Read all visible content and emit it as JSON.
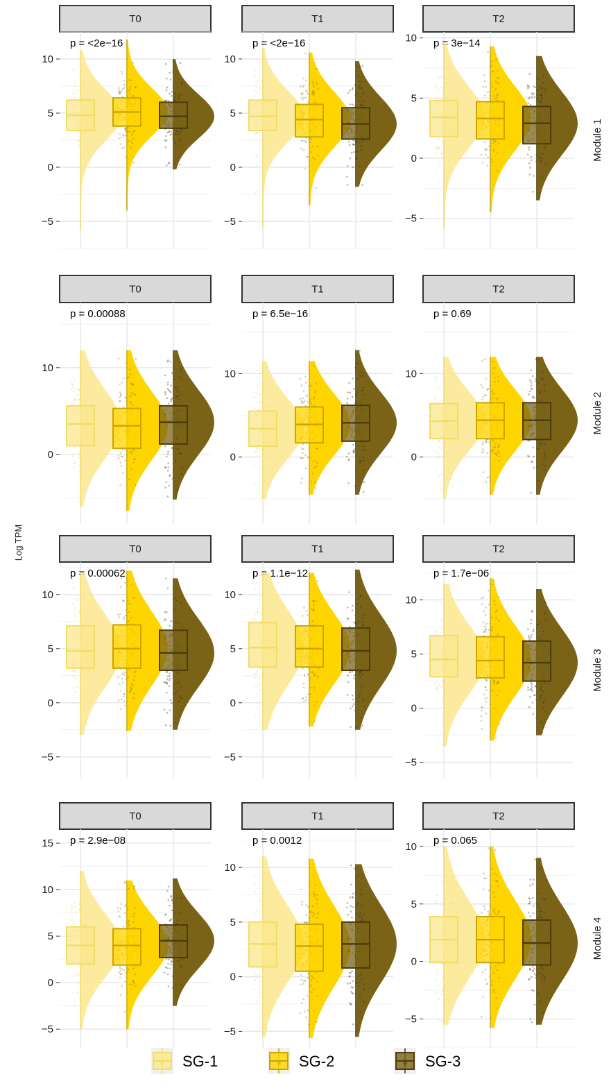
{
  "chart_data": {
    "type": "boxplot-raincloud",
    "ylabel": "Log TPM",
    "facet_columns": [
      "T0",
      "T1",
      "T2"
    ],
    "facet_rows": [
      "Module 1",
      "Module 2",
      "Module 3",
      "Module 4"
    ],
    "groups": [
      "SG-1",
      "SG-2",
      "SG-3"
    ],
    "colors": {
      "SG-1": "#fbe88e",
      "SG-2": "#ffd500",
      "SG-3": "#7a6317"
    },
    "legend": {
      "position": "bottom",
      "labels": [
        "SG-1",
        "SG-2",
        "SG-3"
      ],
      "key_glyph": "a"
    },
    "panels": [
      {
        "module": "Module 1",
        "time": "T0",
        "p_label": "p = <2e−16",
        "ylim": [
          -7.5,
          12.5
        ],
        "yticks": [
          -5,
          0,
          5,
          10
        ],
        "boxes": [
          {
            "group": "SG-1",
            "q1": 3.4,
            "median": 4.8,
            "q3": 6.2,
            "min": -5.8,
            "max": 10.8
          },
          {
            "group": "SG-2",
            "q1": 3.8,
            "median": 5.1,
            "q3": 6.4,
            "min": -4.0,
            "max": 11.8
          },
          {
            "group": "SG-3",
            "q1": 3.6,
            "median": 4.7,
            "q3": 6.0,
            "min": -0.2,
            "max": 10.0
          }
        ]
      },
      {
        "module": "Module 1",
        "time": "T1",
        "p_label": "p = <2e−16",
        "ylim": [
          -7.5,
          12.5
        ],
        "yticks": [
          -5,
          0,
          5,
          10
        ],
        "boxes": [
          {
            "group": "SG-1",
            "q1": 3.4,
            "median": 4.7,
            "q3": 6.2,
            "min": -5.5,
            "max": 11.0
          },
          {
            "group": "SG-2",
            "q1": 2.8,
            "median": 4.4,
            "q3": 5.8,
            "min": -3.5,
            "max": 10.6
          },
          {
            "group": "SG-3",
            "q1": 2.6,
            "median": 4.0,
            "q3": 5.5,
            "min": -1.8,
            "max": 9.8
          }
        ]
      },
      {
        "module": "Module 1",
        "time": "T2",
        "p_label": "p = 3e−14",
        "ylim": [
          -7.5,
          10.5
        ],
        "yticks": [
          -5,
          0,
          5,
          10
        ],
        "boxes": [
          {
            "group": "SG-1",
            "q1": 1.8,
            "median": 3.4,
            "q3": 4.8,
            "min": -5.8,
            "max": 9.5
          },
          {
            "group": "SG-2",
            "q1": 1.6,
            "median": 3.3,
            "q3": 4.7,
            "min": -4.5,
            "max": 9.3
          },
          {
            "group": "SG-3",
            "q1": 1.2,
            "median": 2.9,
            "q3": 4.3,
            "min": -3.5,
            "max": 8.5
          }
        ]
      },
      {
        "module": "Module 2",
        "time": "T0",
        "p_label": "p = 0.00088",
        "ylim": [
          -8,
          17.5
        ],
        "yticks": [
          0,
          10
        ],
        "boxes": [
          {
            "group": "SG-1",
            "q1": 1.0,
            "median": 3.5,
            "q3": 5.6,
            "min": -6.0,
            "max": 12.0
          },
          {
            "group": "SG-2",
            "q1": 0.7,
            "median": 3.3,
            "q3": 5.3,
            "min": -6.5,
            "max": 12.0
          },
          {
            "group": "SG-3",
            "q1": 1.2,
            "median": 3.7,
            "q3": 5.6,
            "min": -5.2,
            "max": 12.0
          }
        ]
      },
      {
        "module": "Module 2",
        "time": "T1",
        "p_label": "p = 6.5e−16",
        "ylim": [
          -8,
          18.5
        ],
        "yticks": [
          0,
          10
        ],
        "boxes": [
          {
            "group": "SG-1",
            "q1": 1.3,
            "median": 3.4,
            "q3": 5.5,
            "min": -5.0,
            "max": 11.5
          },
          {
            "group": "SG-2",
            "q1": 1.7,
            "median": 3.9,
            "q3": 6.0,
            "min": -4.5,
            "max": 11.5
          },
          {
            "group": "SG-3",
            "q1": 1.9,
            "median": 4.1,
            "q3": 6.2,
            "min": -4.5,
            "max": 12.8
          }
        ]
      },
      {
        "module": "Module 2",
        "time": "T2",
        "p_label": "p = 0.69",
        "ylim": [
          -8,
          18.5
        ],
        "yticks": [
          0,
          10
        ],
        "boxes": [
          {
            "group": "SG-1",
            "q1": 2.2,
            "median": 4.3,
            "q3": 6.4,
            "min": -5.0,
            "max": 12.0
          },
          {
            "group": "SG-2",
            "q1": 2.2,
            "median": 4.4,
            "q3": 6.5,
            "min": -4.5,
            "max": 12.0
          },
          {
            "group": "SG-3",
            "q1": 2.1,
            "median": 4.4,
            "q3": 6.5,
            "min": -4.5,
            "max": 12.0
          }
        ]
      },
      {
        "module": "Module 3",
        "time": "T0",
        "p_label": "p = 0.00062",
        "ylim": [
          -7,
          13
        ],
        "yticks": [
          -5,
          0,
          5,
          10
        ],
        "boxes": [
          {
            "group": "SG-1",
            "q1": 3.2,
            "median": 4.8,
            "q3": 7.1,
            "min": -3.0,
            "max": 12.0
          },
          {
            "group": "SG-2",
            "q1": 3.2,
            "median": 5.0,
            "q3": 7.2,
            "min": -2.6,
            "max": 12.2
          },
          {
            "group": "SG-3",
            "q1": 3.0,
            "median": 4.6,
            "q3": 6.7,
            "min": -2.5,
            "max": 11.5
          }
        ]
      },
      {
        "module": "Module 3",
        "time": "T1",
        "p_label": "p = 1.1e−12",
        "ylim": [
          -7,
          13
        ],
        "yticks": [
          -5,
          0,
          5,
          10
        ],
        "boxes": [
          {
            "group": "SG-1",
            "q1": 3.3,
            "median": 5.1,
            "q3": 7.4,
            "min": -2.5,
            "max": 12.0
          },
          {
            "group": "SG-2",
            "q1": 3.3,
            "median": 5.0,
            "q3": 7.1,
            "min": -2.2,
            "max": 12.0
          },
          {
            "group": "SG-3",
            "q1": 3.0,
            "median": 4.8,
            "q3": 6.9,
            "min": -2.5,
            "max": 12.3
          }
        ]
      },
      {
        "module": "Module 3",
        "time": "T2",
        "p_label": "p = 1.7e−06",
        "ylim": [
          -6.5,
          13.5
        ],
        "yticks": [
          -5,
          0,
          5,
          10
        ],
        "boxes": [
          {
            "group": "SG-1",
            "q1": 2.9,
            "median": 4.5,
            "q3": 6.7,
            "min": -3.5,
            "max": 11.5
          },
          {
            "group": "SG-2",
            "q1": 2.8,
            "median": 4.4,
            "q3": 6.6,
            "min": -3.0,
            "max": 12.0
          },
          {
            "group": "SG-3",
            "q1": 2.5,
            "median": 4.2,
            "q3": 6.2,
            "min": -2.5,
            "max": 11.0
          }
        ]
      },
      {
        "module": "Module 4",
        "time": "T0",
        "p_label": "p = 2.9e−08",
        "ylim": [
          -7,
          16.5
        ],
        "yticks": [
          -5,
          0,
          5,
          10,
          15
        ],
        "boxes": [
          {
            "group": "SG-1",
            "q1": 2.0,
            "median": 4.0,
            "q3": 6.0,
            "min": -5.0,
            "max": 12.0
          },
          {
            "group": "SG-2",
            "q1": 1.9,
            "median": 4.0,
            "q3": 5.8,
            "min": -5.0,
            "max": 11.0
          },
          {
            "group": "SG-3",
            "q1": 2.7,
            "median": 4.5,
            "q3": 6.2,
            "min": -2.5,
            "max": 11.2
          }
        ]
      },
      {
        "module": "Module 4",
        "time": "T1",
        "p_label": "p = 0.0012",
        "ylim": [
          -6.5,
          13.5
        ],
        "yticks": [
          -5,
          0,
          5,
          10
        ],
        "boxes": [
          {
            "group": "SG-1",
            "q1": 0.9,
            "median": 3.0,
            "q3": 5.0,
            "min": -5.5,
            "max": 11.0
          },
          {
            "group": "SG-2",
            "q1": 0.5,
            "median": 2.8,
            "q3": 4.8,
            "min": -5.6,
            "max": 10.8
          },
          {
            "group": "SG-3",
            "q1": 0.8,
            "median": 3.0,
            "q3": 5.0,
            "min": -5.5,
            "max": 10.3
          }
        ]
      },
      {
        "module": "Module 4",
        "time": "T2",
        "p_label": "p = 0.065",
        "ylim": [
          -7.5,
          11.5
        ],
        "yticks": [
          -5,
          0,
          5,
          10
        ],
        "boxes": [
          {
            "group": "SG-1",
            "q1": -0.1,
            "median": 1.9,
            "q3": 3.9,
            "min": -5.5,
            "max": 10.0
          },
          {
            "group": "SG-2",
            "q1": -0.1,
            "median": 1.9,
            "q3": 3.9,
            "min": -5.8,
            "max": 10.0
          },
          {
            "group": "SG-3",
            "q1": -0.3,
            "median": 1.6,
            "q3": 3.6,
            "min": -5.5,
            "max": 9.0
          }
        ]
      }
    ]
  }
}
